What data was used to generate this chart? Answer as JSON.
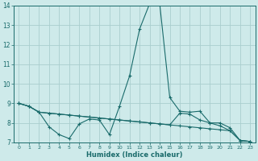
{
  "xlabel": "Humidex (Indice chaleur)",
  "xlim": [
    -0.5,
    23.5
  ],
  "ylim": [
    7,
    14
  ],
  "yticks": [
    7,
    8,
    9,
    10,
    11,
    12,
    13,
    14
  ],
  "xticks": [
    0,
    1,
    2,
    3,
    4,
    5,
    6,
    7,
    8,
    9,
    10,
    11,
    12,
    13,
    14,
    15,
    16,
    17,
    18,
    19,
    20,
    21,
    22,
    23
  ],
  "bg_color": "#ceeaea",
  "grid_color": "#aacece",
  "line_color": "#1a6b6b",
  "line1_x": [
    0,
    1,
    2,
    3,
    4,
    5,
    6,
    7,
    8,
    9,
    10,
    11,
    12,
    13,
    14,
    15,
    16,
    17,
    18,
    19,
    20,
    21,
    22,
    23
  ],
  "line1_y": [
    9.0,
    8.85,
    8.55,
    7.8,
    7.4,
    7.2,
    7.95,
    8.2,
    8.15,
    7.4,
    8.85,
    10.4,
    12.8,
    14.1,
    14.1,
    9.3,
    8.6,
    8.55,
    8.6,
    8.0,
    7.85,
    7.6,
    7.1,
    7.05
  ],
  "line2_x": [
    0,
    1,
    2,
    3,
    4,
    5,
    6,
    7,
    8,
    9,
    10,
    11,
    12,
    13,
    14,
    15,
    16,
    17,
    18,
    19,
    20,
    21,
    22,
    23
  ],
  "line2_y": [
    9.0,
    8.85,
    8.55,
    8.5,
    8.45,
    8.4,
    8.35,
    8.3,
    8.25,
    8.2,
    8.15,
    8.1,
    8.05,
    8.0,
    7.95,
    7.9,
    7.85,
    7.8,
    7.75,
    7.7,
    7.65,
    7.6,
    7.1,
    7.05
  ],
  "line3_x": [
    0,
    1,
    2,
    3,
    4,
    5,
    6,
    7,
    8,
    9,
    10,
    11,
    12,
    13,
    14,
    15,
    16,
    17,
    18,
    19,
    20,
    21,
    22,
    23
  ],
  "line3_y": [
    9.0,
    8.85,
    8.55,
    8.5,
    8.45,
    8.4,
    8.35,
    8.3,
    8.25,
    8.2,
    8.15,
    8.1,
    8.05,
    8.0,
    7.95,
    7.9,
    8.5,
    8.45,
    8.15,
    8.0,
    8.0,
    7.75,
    7.1,
    7.05
  ]
}
